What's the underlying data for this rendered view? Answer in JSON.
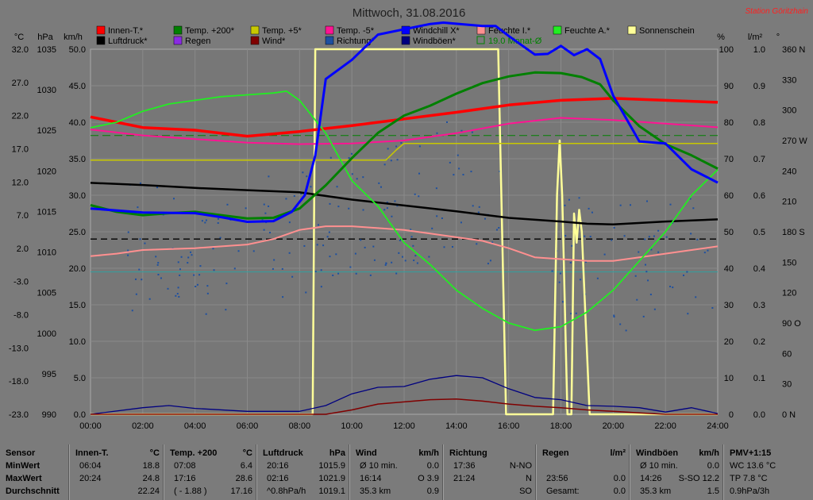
{
  "colors": {
    "innen_t": "#ff0000",
    "temp200": "#008000",
    "temp5": "#c8c800",
    "temp_5": "#ff1493",
    "windchill": "#0000ff",
    "feuchte_i": "#ff9090",
    "feuchte_a": "#22ee22",
    "sonnenschein": "#ffff99",
    "luftdruck": "#000000",
    "regen": "#8a2be2",
    "wind": "#800000",
    "richtung": "#1e50a0",
    "windboeen": "#000080",
    "monat": "#008000"
  },
  "chart_data": {
    "type": "line",
    "title": "Mittwoch, 31.08.2016",
    "station": "Station Göritzhain",
    "x_ticks": [
      "00:00",
      "02:00",
      "04:00",
      "06:00",
      "08:00",
      "10:00",
      "12:00",
      "14:00",
      "16:00",
      "18:00",
      "20:00",
      "22:00",
      "24:00"
    ],
    "axes": {
      "celsius": {
        "unit": "°C",
        "ticks": [
          "32.0",
          "27.0",
          "22.0",
          "17.0",
          "12.0",
          "7.0",
          "2.0",
          "-3.0",
          "-8.0",
          "-13.0",
          "-18.0",
          "-23.0"
        ],
        "range": [
          -23,
          32
        ]
      },
      "hpa": {
        "unit": "hPa",
        "ticks": [
          "1035",
          "1030",
          "1025",
          "1020",
          "1015",
          "1010",
          "1005",
          "1000",
          "995",
          "990"
        ],
        "range": [
          990,
          1040
        ]
      },
      "kmh": {
        "unit": "km/h",
        "ticks": [
          "50.0",
          "45.0",
          "40.0",
          "35.0",
          "30.0",
          "25.0",
          "20.0",
          "15.0",
          "10.0",
          "5.0",
          "0.0"
        ],
        "range": [
          0,
          50
        ]
      },
      "percent": {
        "unit": "%",
        "ticks": [
          "100",
          "90",
          "80",
          "70",
          "60",
          "50",
          "40",
          "30",
          "20",
          "10",
          "0"
        ],
        "range": [
          0,
          100
        ]
      },
      "lm2": {
        "unit": "l/m²",
        "ticks": [
          "1.0",
          "0.9",
          "0.8",
          "0.7",
          "0.6",
          "0.5",
          "0.4",
          "0.3",
          "0.2",
          "0.1",
          "0.0"
        ],
        "range": [
          0,
          1
        ]
      },
      "degrees": {
        "unit": "°",
        "ticks": [
          "360 N",
          "330",
          "300",
          "270 W",
          "240",
          "210",
          "180 S",
          "150",
          "120",
          "90 O",
          "60",
          "30",
          "0 N"
        ],
        "range": [
          0,
          360
        ]
      }
    },
    "legend": [
      {
        "key": "innen_t",
        "label": "Innen-T.*"
      },
      {
        "key": "temp200",
        "label": "Temp. +200*"
      },
      {
        "key": "temp5",
        "label": "Temp. +5*"
      },
      {
        "key": "temp_5",
        "label": "Temp. -5*"
      },
      {
        "key": "windchill",
        "label": "Windchill X*"
      },
      {
        "key": "feuchte_i",
        "label": "Feuchte I.*"
      },
      {
        "key": "feuchte_a",
        "label": "Feuchte A.*"
      },
      {
        "key": "sonnenschein",
        "label": "Sonnenschein"
      },
      {
        "key": "luftdruck",
        "label": "Luftdruck*"
      },
      {
        "key": "regen",
        "label": "Regen"
      },
      {
        "key": "wind",
        "label": "Wind*"
      },
      {
        "key": "richtung",
        "label": "Richtung*"
      },
      {
        "key": "windboeen",
        "label": "Windböen*"
      },
      {
        "key": "monat",
        "label": "19.0 Monat-Ø"
      }
    ],
    "series": [
      {
        "name": "Innen-T.*",
        "key": "innen_t",
        "axis": "celsius",
        "x": [
          0,
          2,
          4,
          6,
          8,
          10,
          12,
          14,
          16,
          18,
          20,
          22,
          24
        ],
        "y": [
          21.8,
          20.2,
          19.8,
          18.9,
          19.6,
          20.5,
          21.5,
          22.5,
          23.6,
          24.3,
          24.6,
          24.3,
          24.0
        ]
      },
      {
        "name": "Temp. +200*",
        "key": "temp200",
        "axis": "celsius",
        "x": [
          0,
          1,
          2,
          3,
          4,
          5,
          6,
          7,
          8,
          9,
          10,
          11,
          12,
          13,
          14,
          15,
          16,
          17,
          18,
          18.8,
          19.5,
          20,
          21,
          22,
          23,
          24
        ],
        "y": [
          8.5,
          7.5,
          7.0,
          7.3,
          7.5,
          7.0,
          6.5,
          6.6,
          8.0,
          11.5,
          15.6,
          19.4,
          22.0,
          23.5,
          25.3,
          26.9,
          27.9,
          28.5,
          28.4,
          27.8,
          26.7,
          24.3,
          20.4,
          17.7,
          16.0,
          14.0
        ]
      },
      {
        "name": "Temp. +5*",
        "key": "temp5",
        "axis": "kmh",
        "x": [
          0,
          8,
          11.3,
          11.7,
          12,
          24
        ],
        "y": [
          34.8,
          34.8,
          34.8,
          36.2,
          37.1,
          37.1
        ]
      },
      {
        "name": "Temp. -5*",
        "key": "temp_5",
        "axis": "kmh",
        "x": [
          0,
          2,
          4,
          6,
          8,
          10,
          12,
          14,
          16,
          18,
          20,
          22,
          24
        ],
        "y": [
          39.0,
          38.2,
          37.7,
          37.2,
          37.0,
          37.1,
          37.5,
          38.5,
          39.8,
          40.6,
          40.3,
          39.8,
          39.3
        ]
      },
      {
        "name": "Windchill X*",
        "key": "windchill",
        "axis": "celsius",
        "x": [
          0,
          2,
          4,
          5,
          6,
          7,
          7.7,
          8.2,
          8.6,
          9,
          10,
          11,
          12,
          13,
          13.5,
          15,
          15.5,
          16,
          17,
          17.5,
          18,
          18.5,
          19,
          19.5,
          20,
          21,
          22,
          23,
          24
        ],
        "y": [
          8.0,
          7.4,
          7.3,
          6.7,
          6.0,
          6.1,
          7.5,
          10.0,
          16.0,
          27.5,
          30.4,
          34.2,
          35.0,
          35.8,
          36.0,
          35.5,
          35.5,
          34.0,
          31.2,
          31.3,
          32.5,
          31.1,
          32.0,
          30.5,
          25.0,
          18.1,
          17.8,
          13.9,
          11.9
        ]
      },
      {
        "name": "Feuchte I.*",
        "key": "feuchte_i",
        "axis": "percent",
        "x": [
          0,
          1,
          2,
          4,
          6,
          7,
          8,
          9,
          10,
          11,
          12,
          13,
          14,
          15,
          16,
          17,
          18,
          19,
          20,
          21,
          22,
          23,
          24
        ],
        "y": [
          43.3,
          44.0,
          45.0,
          45.5,
          46.5,
          48.0,
          50.5,
          51.5,
          51.5,
          51.0,
          50.5,
          49.5,
          48.5,
          47.5,
          45.5,
          43.0,
          42.5,
          42.0,
          42.0,
          43.0,
          44.0,
          45.0,
          46.0
        ]
      },
      {
        "name": "Feuchte A.*",
        "key": "feuchte_a",
        "axis": "percent",
        "x": [
          0,
          1,
          2,
          3,
          4,
          5,
          6,
          7,
          7.5,
          8,
          9,
          10,
          11,
          12,
          13,
          14,
          15,
          16,
          17,
          18,
          19,
          20,
          21,
          22,
          23,
          24
        ],
        "y": [
          78.5,
          80.0,
          83.0,
          85.0,
          86.0,
          87.0,
          87.5,
          88.0,
          88.5,
          86.0,
          77.0,
          64.0,
          57.0,
          47.0,
          41.0,
          34.0,
          29.0,
          25.0,
          23.0,
          24.0,
          28.0,
          34.0,
          42.0,
          50.0,
          60.0,
          67.0
        ]
      },
      {
        "name": "Sonnenschein",
        "key": "sonnenschein",
        "axis": "percent",
        "x": [
          0,
          8.5,
          8.6,
          15.6,
          15.9,
          17.7,
          17.85,
          17.95,
          18.05,
          18.25,
          18.4,
          18.5,
          18.6,
          18.7,
          18.8,
          19.1,
          19.2,
          24
        ],
        "y": [
          0,
          0,
          100,
          100,
          0,
          0,
          60,
          75,
          60,
          0,
          0,
          55,
          47,
          56,
          50,
          0,
          0,
          0
        ]
      },
      {
        "name": "Luftdruck*",
        "key": "luftdruck",
        "axis": "hpa",
        "x": [
          0,
          2,
          4,
          6,
          8,
          10,
          12,
          14,
          16,
          18,
          19,
          20,
          22,
          24
        ],
        "y": [
          1021.7,
          1021.4,
          1021.0,
          1020.7,
          1020.4,
          1019.4,
          1018.6,
          1017.8,
          1016.9,
          1016.4,
          1016.1,
          1016.0,
          1016.4,
          1016.7
        ]
      },
      {
        "name": "Wind*",
        "key": "wind",
        "axis": "kmh",
        "x": [
          0,
          9,
          10,
          11,
          12,
          13,
          14,
          15,
          16,
          17,
          18,
          19,
          20,
          21,
          22,
          24
        ],
        "y": [
          0,
          0,
          0.6,
          1.4,
          1.7,
          2.0,
          2.1,
          1.8,
          1.4,
          1.1,
          0.9,
          0.6,
          0.4,
          0.2,
          0,
          0
        ]
      },
      {
        "name": "Windböen*",
        "key": "windboeen",
        "axis": "kmh",
        "x": [
          0,
          2,
          3,
          4,
          6,
          8,
          9,
          10,
          11,
          12,
          13,
          14,
          15,
          16,
          17,
          18,
          19,
          20,
          21,
          22,
          23,
          24
        ],
        "y": [
          0,
          0.9,
          1.2,
          0.8,
          0.4,
          0.4,
          1.2,
          2.8,
          3.7,
          3.8,
          4.8,
          5.3,
          5.0,
          3.5,
          2.3,
          2.0,
          1.2,
          1.1,
          0.9,
          0.3,
          0.9,
          0.1
        ]
      },
      {
        "name": "Richtung*",
        "key": "richtung",
        "axis": "degrees",
        "type": "scatter",
        "x": [
          0,
          2,
          4,
          6,
          8,
          10,
          12,
          14,
          16,
          18,
          20,
          22,
          24
        ],
        "y": [
          150,
          170,
          160,
          175,
          180,
          200,
          205,
          230,
          190,
          160,
          140,
          160,
          170
        ]
      }
    ],
    "reference_lines": [
      {
        "label": "19.0 Monat-Ø",
        "axis": "celsius",
        "value": 19.0,
        "style": "dashed",
        "key": "monat"
      },
      {
        "axis": "kmh",
        "value": 24.0,
        "style": "dashed",
        "key": "luftdruck"
      },
      {
        "axis": "kmh",
        "value": 19.5,
        "style": "solid",
        "color": "#30a0a0"
      }
    ]
  },
  "table": {
    "columns": [
      {
        "title": "Sensor",
        "unit": "",
        "rows": [
          "MinWert",
          "MaxWert",
          "Durchschnitt"
        ]
      },
      {
        "title": "Innen-T.",
        "unit": "°C",
        "rows": [
          [
            "06:04",
            "18.8"
          ],
          [
            "20:24",
            "24.8"
          ],
          [
            "",
            "22.24"
          ]
        ]
      },
      {
        "title": "Temp. +200",
        "unit": "°C",
        "rows": [
          [
            "07:08",
            "6.4"
          ],
          [
            "17:16",
            "28.6"
          ],
          [
            "( - 1.88 )",
            "17.16"
          ]
        ]
      },
      {
        "title": "Luftdruck",
        "unit": "hPa",
        "rows": [
          [
            "20:16",
            "1015.9"
          ],
          [
            "02:16",
            "1021.9"
          ],
          [
            "^0.8hPa/h",
            "1019.1"
          ]
        ]
      },
      {
        "title": "Wind",
        "unit": "km/h",
        "rows": [
          [
            "Ø 10 min.",
            "0.0"
          ],
          [
            "16:14",
            "O 3.9"
          ],
          [
            "35.3 km",
            "0.9"
          ]
        ]
      },
      {
        "title": "Richtung",
        "unit": "",
        "rows": [
          [
            "17:36",
            "N-NO"
          ],
          [
            "21:24",
            "N"
          ],
          [
            "",
            "SO"
          ]
        ]
      },
      {
        "title": "Regen",
        "unit": "l/m²",
        "rows": [
          [
            "",
            ""
          ],
          [
            "23:56",
            "0.0"
          ],
          [
            "Gesamt:",
            "0.0"
          ]
        ]
      },
      {
        "title": "Windböen",
        "unit": "km/h",
        "rows": [
          [
            "Ø 10 min.",
            "0.0"
          ],
          [
            "14:26",
            "S-SO 12.2"
          ],
          [
            "35.3 km",
            "1.5"
          ]
        ]
      },
      {
        "title": "PMV+1:15",
        "unit": "",
        "rows": [
          [
            "WC 13.6 °C",
            ""
          ],
          [
            "TP 7.8 °C",
            ""
          ],
          [
            "0.9hPa/3h",
            ""
          ]
        ]
      }
    ]
  }
}
